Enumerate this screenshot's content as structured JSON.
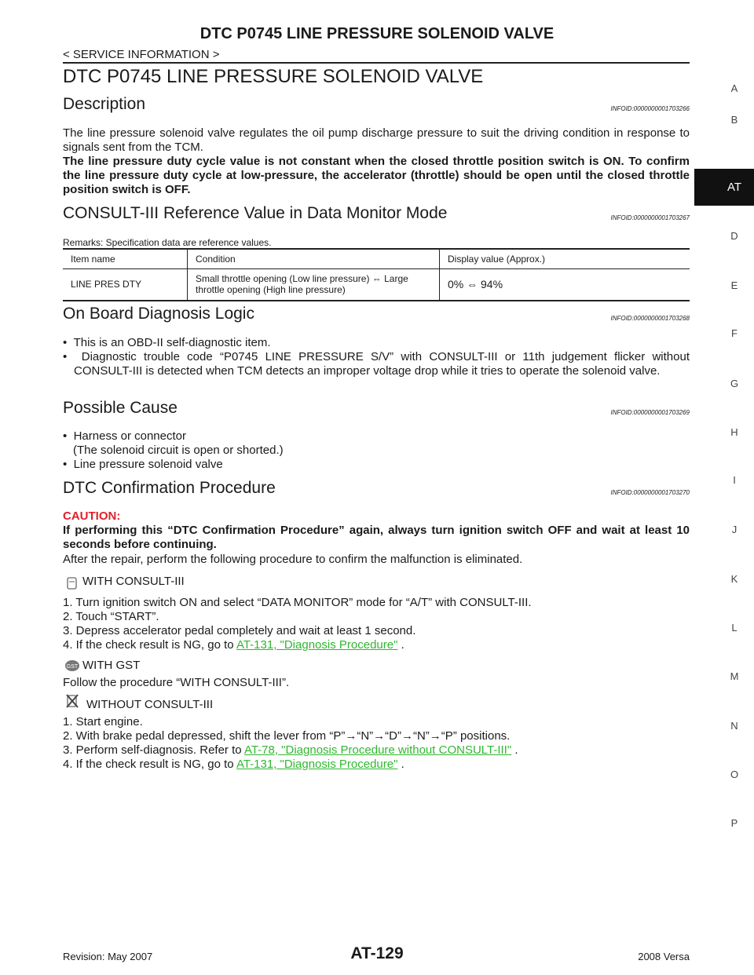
{
  "header": {
    "title": "DTC P0745 LINE PRESSURE SOLENOID VALVE",
    "breadcrumb": "< SERVICE INFORMATION >"
  },
  "side_index": [
    "A",
    "B",
    "AT",
    "D",
    "E",
    "F",
    "G",
    "H",
    "I",
    "J",
    "K",
    "L",
    "M",
    "N",
    "O",
    "P"
  ],
  "main_title": "DTC P0745 LINE PRESSURE SOLENOID VALVE",
  "description": {
    "heading": "Description",
    "infoid": "INFOID:0000000001703266",
    "text": "The line pressure solenoid valve regulates the oil pump discharge pressure to suit the driving condition in response to signals sent from the TCM.",
    "bold_text": "The line pressure duty cycle value is not constant when the closed throttle position switch is ON. To confirm the line pressure duty cycle at low-pressure, the accelerator (throttle) should be open until the closed throttle position switch is OFF."
  },
  "consult": {
    "heading": "CONSULT-III Reference Value in Data Monitor Mode",
    "infoid": "INFOID:0000000001703267",
    "remarks": "Remarks: Specification data are reference values.",
    "table": {
      "header": [
        "Item name",
        "Condition",
        "Display value (Approx.)"
      ],
      "rows": [
        [
          "LINE PRES DTY",
          "Small throttle opening (Low line pressure) ⇔ Large throttle opening (High line pressure)",
          "0% ⇔ 94%"
        ]
      ]
    }
  },
  "obd": {
    "heading": "On Board Diagnosis Logic",
    "infoid": "INFOID:0000000001703268",
    "items": [
      "This is an OBD-II self-diagnostic item.",
      "Diagnostic trouble code “P0745 LINE PRESSURE S/V” with CONSULT-III or 11th judgement flicker without CONSULT-III is detected when TCM detects an improper voltage drop while it tries to operate the solenoid valve."
    ]
  },
  "cause": {
    "heading": "Possible Cause",
    "infoid": "INFOID:0000000001703269",
    "items": [
      "Harness or connector",
      "(The solenoid circuit is open or shorted.)",
      "Line pressure solenoid valve"
    ]
  },
  "dtc": {
    "heading": "DTC Confirmation Procedure",
    "infoid": "INFOID:0000000001703270",
    "caution_label": "CAUTION:",
    "caution": "If performing this “DTC Confirmation Procedure” again, always turn ignition switch OFF and wait at least 10 seconds before continuing.",
    "after": "After the repair, perform the following procedure to confirm the malfunction is eliminated.",
    "with_consult": {
      "title": "WITH CONSULT-III",
      "steps": [
        "1. Turn ignition switch ON and select “DATA MONITOR” mode for “A/T” with CONSULT-III.",
        "2. Touch “START”.",
        "3. Depress accelerator pedal completely and wait at least 1 second."
      ],
      "last": {
        "text": "4. If the check result is NG, go to ",
        "link": "AT-131, \"Diagnosis Procedure\"",
        "end": " ."
      }
    },
    "with_gst": {
      "title": "WITH GST",
      "text": "Follow the procedure “WITH CONSULT-III”."
    },
    "without_consult": {
      "title": "WITHOUT CONSULT-III",
      "steps": [
        "1. Start engine.",
        "2. With brake pedal depressed, shift the lever from “P”→“N”→“D”→“N”→“P” positions."
      ],
      "step3": {
        "text": "3. Perform self-diagnosis. Refer to ",
        "link": "AT-78, \"Diagnosis Procedure without CONSULT-III\"",
        "end": " ."
      },
      "step4": {
        "text": "4. If the check result is NG, go to ",
        "link": "AT-131, \"Diagnosis Procedure\"",
        "end": " ."
      }
    }
  },
  "footer": {
    "revision": "Revision: May 2007",
    "page": "AT-129",
    "model": "2008 Versa"
  }
}
